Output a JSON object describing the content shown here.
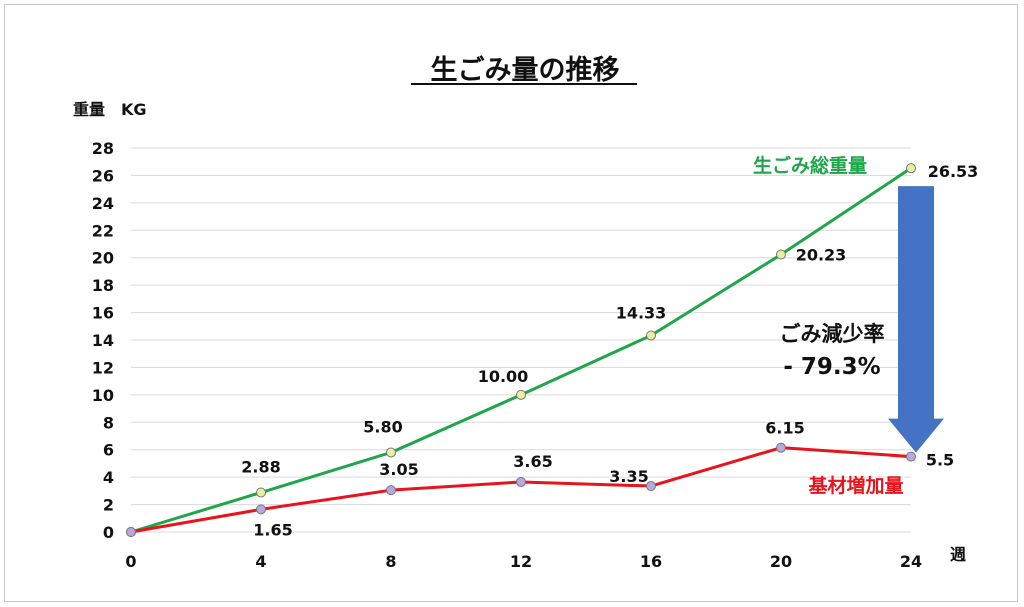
{
  "chart_data": {
    "type": "line",
    "title": "生ごみ量の推移",
    "ylabel": "重量　KG",
    "xlabel": "週",
    "x": [
      0,
      4,
      8,
      12,
      16,
      20,
      24
    ],
    "xlim": [
      0,
      24
    ],
    "ylim": [
      0,
      28
    ],
    "yticks": [
      0,
      2,
      4,
      6,
      8,
      10,
      12,
      14,
      16,
      18,
      20,
      22,
      24,
      26,
      28
    ],
    "grid": true,
    "series": [
      {
        "name": "生ごみ総重量",
        "color": "#1fa64a",
        "marker_color": "#e8f0a0",
        "values": [
          0,
          2.88,
          5.8,
          10.0,
          14.33,
          20.23,
          26.53
        ],
        "labels": [
          "",
          "2.88",
          "5.80",
          "10.00",
          "14.33",
          "20.23",
          "26.53"
        ]
      },
      {
        "name": "基材増加量",
        "color": "#e8141b",
        "marker_color": "#b8a8e0",
        "values": [
          0,
          1.65,
          3.05,
          3.65,
          3.35,
          6.15,
          5.5
        ],
        "labels": [
          "",
          "1.65",
          "3.05",
          "3.65",
          "3.35",
          "6.15",
          "5.5"
        ]
      }
    ],
    "annotation": {
      "line1": "ごみ減少率",
      "line2": "- 79.3%",
      "arrow_color": "#4472c4"
    }
  }
}
